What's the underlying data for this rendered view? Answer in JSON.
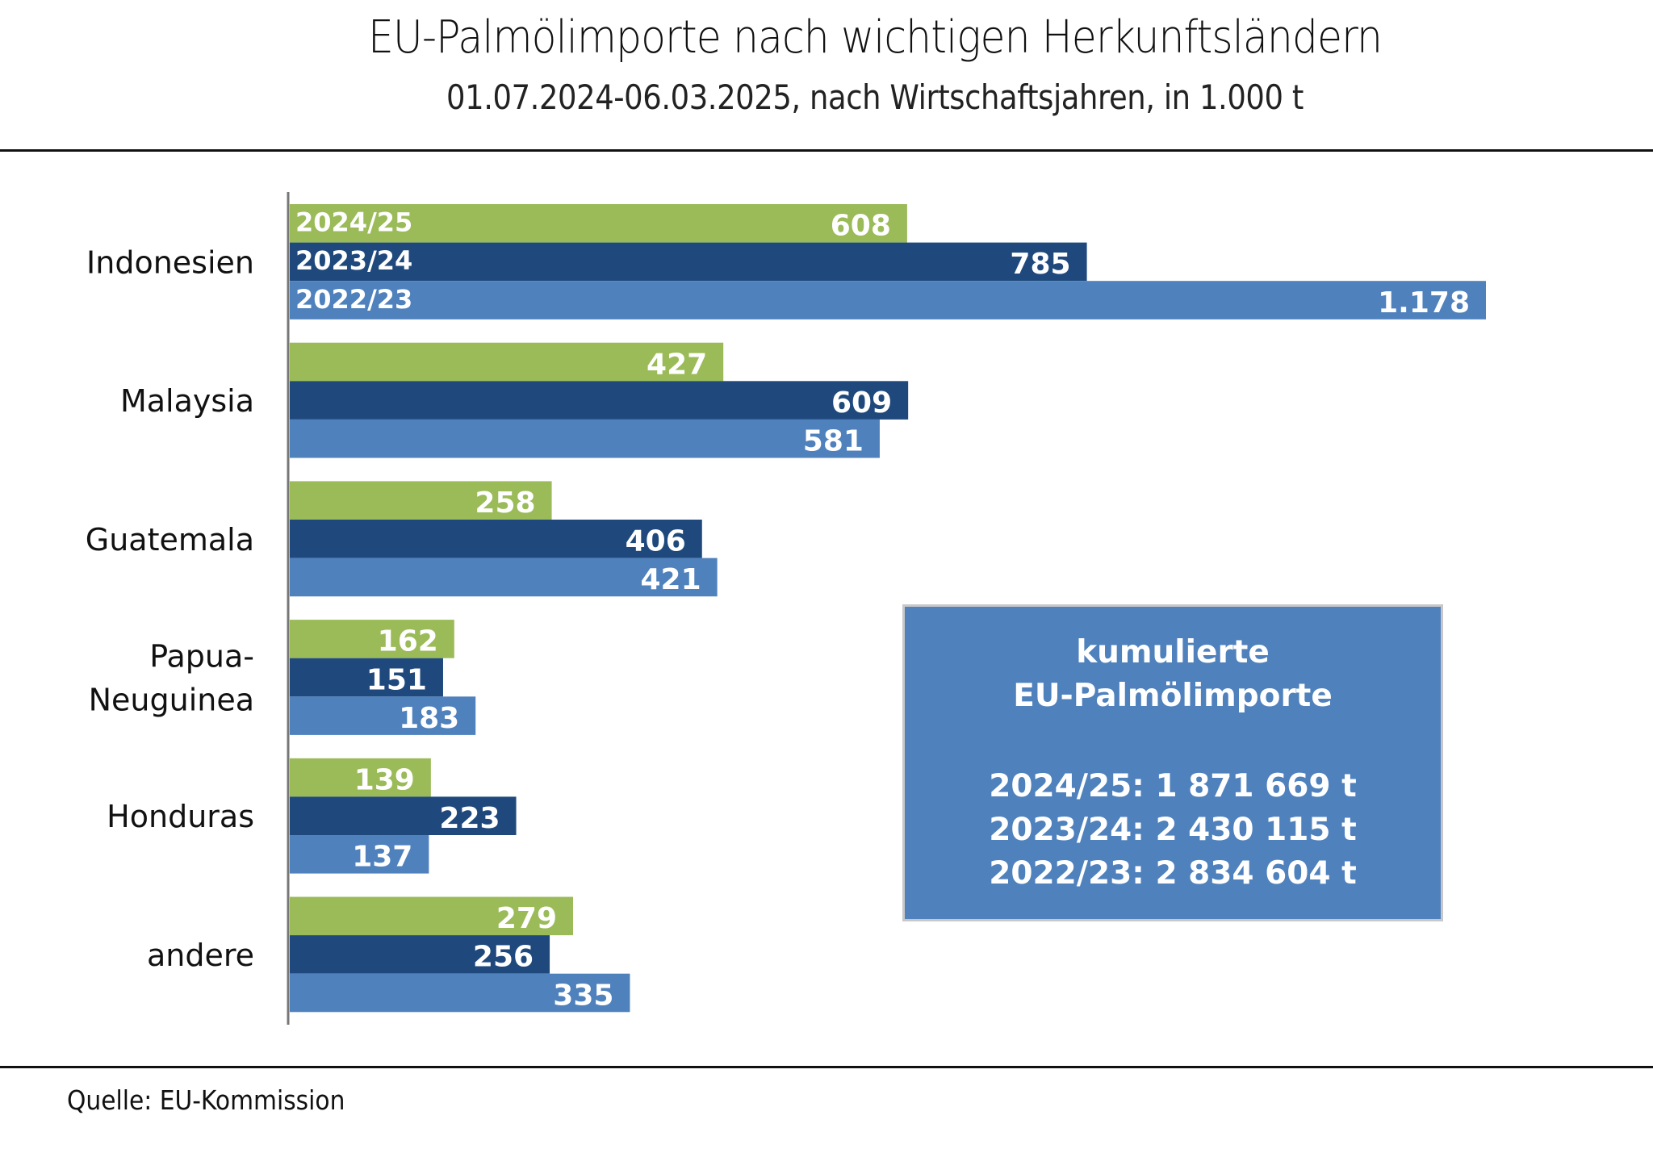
{
  "chart_data": {
    "type": "bar",
    "orientation": "horizontal",
    "title": "EU-Palmölimporte nach wichtigen Herkunftsländern",
    "subtitle": "01.07.2024-06.03.2025, nach Wirtschaftsjahren, in 1.000 t",
    "xlabel": "",
    "ylabel": "",
    "xlim": [
      0,
      1178
    ],
    "grid": false,
    "categories": [
      "Indonesien",
      "Malaysia",
      "Guatemala",
      "Papua-\nNeuguinea",
      "Honduras",
      "andere"
    ],
    "category_lines": [
      [
        "Indonesien"
      ],
      [
        "Malaysia"
      ],
      [
        "Guatemala"
      ],
      [
        "Papua-",
        "Neuguinea"
      ],
      [
        "Honduras"
      ],
      [
        "andere"
      ]
    ],
    "series": [
      {
        "name": "2024/25",
        "color": "#9bbb59",
        "values": [
          608,
          427,
          258,
          162,
          139,
          279
        ],
        "labels": [
          "608",
          "427",
          "258",
          "162",
          "139",
          "279"
        ]
      },
      {
        "name": "2023/24",
        "color": "#1f497d",
        "values": [
          785,
          609,
          406,
          151,
          223,
          256
        ],
        "labels": [
          "785",
          "609",
          "406",
          "151",
          "223",
          "256"
        ]
      },
      {
        "name": "2022/23",
        "color": "#4f81bd",
        "values": [
          1178,
          581,
          421,
          183,
          137,
          335
        ],
        "labels": [
          "1.178",
          "581",
          "421",
          "183",
          "137",
          "335"
        ]
      }
    ],
    "legend": "inline-in-first-group",
    "annotation_box": {
      "title_line1": "kumulierte",
      "title_line2": "EU-Palmölimporte",
      "rows": [
        "2024/25: 1 871 669 t",
        "2023/24: 2 430 115 t",
        "2022/23: 2 834 604 t"
      ],
      "color": "#4f81bd"
    }
  },
  "footer": {
    "source": "Quelle: EU-Kommission"
  }
}
